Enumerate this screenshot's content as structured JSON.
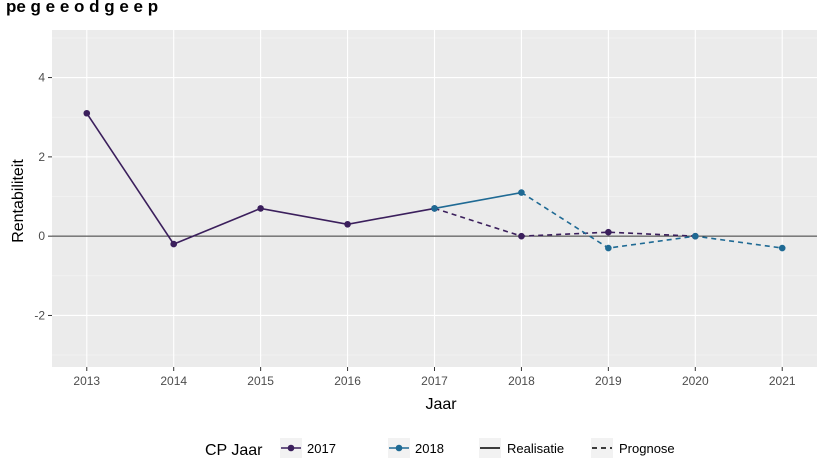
{
  "title": "pe g e e o d g e e p",
  "chart_data": {
    "type": "line",
    "xlabel": "Jaar",
    "ylabel": "Rentabiliteit",
    "x_ticks": [
      "2013",
      "2014",
      "2015",
      "2016",
      "2017",
      "2018",
      "2019",
      "2020",
      "2021"
    ],
    "y_ticks": [
      {
        "value": 4,
        "label": "4"
      },
      {
        "value": 2,
        "label": "2"
      },
      {
        "value": 0,
        "label": "0"
      },
      {
        "value": -2,
        "label": "-2"
      }
    ],
    "xlim": [
      2012.6,
      2021.4
    ],
    "ylim": [
      -3.3,
      5.2
    ],
    "reference_line_y": 0,
    "grid": true,
    "legend_position": "bottom",
    "series": [
      {
        "name": "2017",
        "color": "#3b1f5c",
        "realisatie": {
          "x": [
            2013,
            2014,
            2015,
            2016,
            2017
          ],
          "y": [
            3.1,
            -0.2,
            0.7,
            0.3,
            0.7
          ]
        },
        "prognose": {
          "x": [
            2017,
            2018,
            2019,
            2020
          ],
          "y": [
            0.7,
            0.0,
            0.1,
            0.0
          ]
        }
      },
      {
        "name": "2018",
        "color": "#1f6a94",
        "realisatie": {
          "x": [
            2017,
            2018
          ],
          "y": [
            0.7,
            1.1
          ]
        },
        "prognose": {
          "x": [
            2018,
            2019,
            2020,
            2021
          ],
          "y": [
            1.1,
            -0.3,
            0.0,
            -0.3
          ]
        }
      }
    ],
    "legend": {
      "cp_title": "CP Jaar",
      "cp_items": [
        "2017",
        "2018"
      ],
      "linetype_items": [
        "Realisatie",
        "Prognose"
      ]
    }
  }
}
